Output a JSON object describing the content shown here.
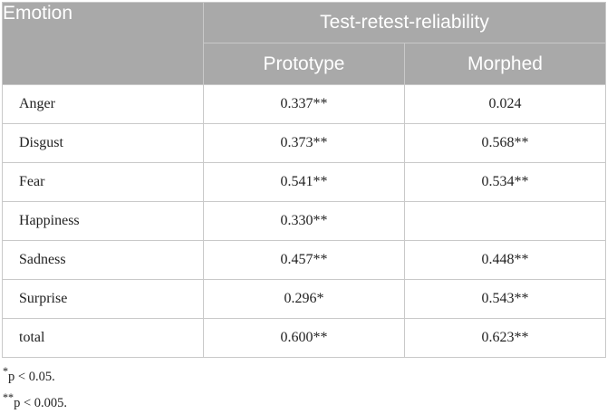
{
  "table": {
    "header": {
      "emotion": "Emotion",
      "group": "Test-retest-reliability",
      "col_prototype": "Prototype",
      "col_morphed": "Morphed"
    },
    "rows": [
      {
        "label": "Anger",
        "prototype": "0.337**",
        "morphed": "0.024"
      },
      {
        "label": "Disgust",
        "prototype": "0.373**",
        "morphed": "0.568**"
      },
      {
        "label": "Fear",
        "prototype": "0.541**",
        "morphed": "0.534**"
      },
      {
        "label": "Happiness",
        "prototype": "0.330**",
        "morphed": ""
      },
      {
        "label": "Sadness",
        "prototype": "0.457**",
        "morphed": "0.448**"
      },
      {
        "label": "Surprise",
        "prototype": "0.296*",
        "morphed": "0.543**"
      },
      {
        "label": "total",
        "prototype": "0.600**",
        "morphed": "0.623**"
      }
    ]
  },
  "footnotes": [
    {
      "mark": "*",
      "text": "p < 0.05."
    },
    {
      "mark": "**",
      "text": "p < 0.005."
    }
  ]
}
